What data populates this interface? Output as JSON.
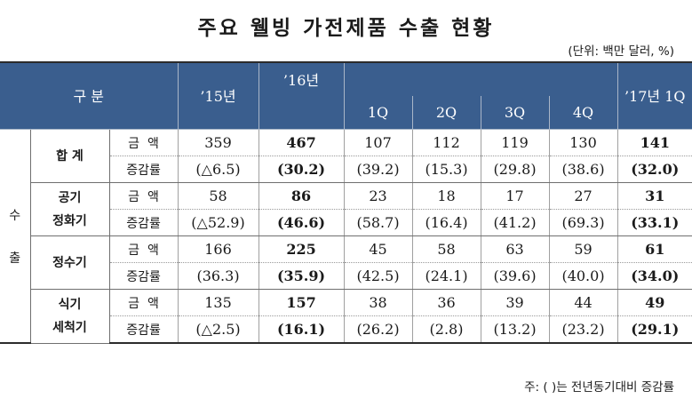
{
  "title": "주요 웰빙 가전제품 수출 현황",
  "unit": "(단위: 백만 달러, %)",
  "header": {
    "category": "구 분",
    "y15": "’15년",
    "y16": "’16년",
    "q1": "1Q",
    "q2": "2Q",
    "q3": "3Q",
    "q4": "4Q",
    "y17q1": "’17년 1Q"
  },
  "side_label": {
    "top": "수",
    "bottom": "출"
  },
  "rows": [
    {
      "category": [
        "합 계"
      ],
      "amount_label": "금  액",
      "rate_label": "증감률",
      "amount": [
        "359",
        "467",
        "107",
        "112",
        "119",
        "130",
        "141"
      ],
      "rate": [
        "(△6.5)",
        "(30.2)",
        "(39.2)",
        "(15.3)",
        "(29.8)",
        "(38.6)",
        "(32.0)"
      ]
    },
    {
      "category": [
        "공기",
        "정화기"
      ],
      "amount_label": "금  액",
      "rate_label": "증감률",
      "amount": [
        "58",
        "86",
        "23",
        "18",
        "17",
        "27",
        "31"
      ],
      "rate": [
        "(△52.9)",
        "(46.6)",
        "(58.7)",
        "(16.4)",
        "(41.2)",
        "(69.3)",
        "(33.1)"
      ]
    },
    {
      "category": [
        "정수기"
      ],
      "amount_label": "금  액",
      "rate_label": "증감률",
      "amount": [
        "166",
        "225",
        "45",
        "58",
        "63",
        "59",
        "61"
      ],
      "rate": [
        "(36.3)",
        "(35.9)",
        "(42.5)",
        "(24.1)",
        "(39.6)",
        "(40.0)",
        "(34.0)"
      ]
    },
    {
      "category": [
        "식기",
        "세척기"
      ],
      "amount_label": "금  액",
      "rate_label": "증감률",
      "amount": [
        "135",
        "157",
        "38",
        "36",
        "39",
        "44",
        "49"
      ],
      "rate": [
        "(△2.5)",
        "(16.1)",
        "(26.2)",
        "(2.8)",
        "(13.2)",
        "(23.2)",
        "(29.1)"
      ]
    }
  ],
  "note": "주: ( )는 전년동기대비 증감률"
}
